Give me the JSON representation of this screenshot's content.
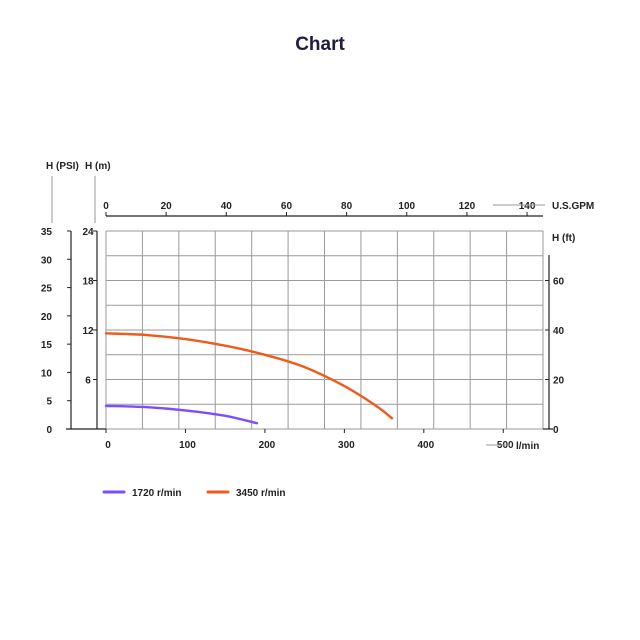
{
  "chart_data": {
    "type": "line",
    "title": "Chart",
    "x_axes": {
      "bottom": {
        "label": "l/min",
        "range": [
          0,
          550
        ],
        "ticks": [
          0,
          100,
          200,
          300,
          400,
          500
        ]
      },
      "top": {
        "label": "U.S.GPM",
        "range": [
          0,
          145.3
        ],
        "ticks": [
          0,
          20,
          40,
          60,
          80,
          100,
          120,
          140
        ]
      }
    },
    "y_axes": {
      "psi": {
        "label": "H (PSI)",
        "range": [
          0,
          35
        ],
        "ticks": [
          0,
          5,
          10,
          15,
          20,
          25,
          30,
          35
        ]
      },
      "m": {
        "label": "H (m)",
        "range": [
          0,
          24
        ],
        "ticks": [
          6,
          12,
          18,
          24
        ]
      },
      "ft": {
        "label": "H (ft)",
        "range": [
          0,
          80
        ],
        "ticks": [
          0,
          20,
          40,
          60
        ]
      }
    },
    "grid": true,
    "legend_position": "bottom-left",
    "series": [
      {
        "name": "1720 r/min",
        "color": "#7c4dff",
        "x": [
          0,
          50,
          100,
          150,
          190
        ],
        "y": [
          2.8,
          2.65,
          2.25,
          1.6,
          0.7
        ]
      },
      {
        "name": "3450 r/min",
        "color": "#f05a1a",
        "x": [
          0,
          50,
          100,
          150,
          200,
          250,
          300,
          340,
          360
        ],
        "y": [
          11.6,
          11.4,
          10.9,
          10.1,
          9.0,
          7.5,
          5.2,
          2.8,
          1.3
        ]
      }
    ]
  }
}
